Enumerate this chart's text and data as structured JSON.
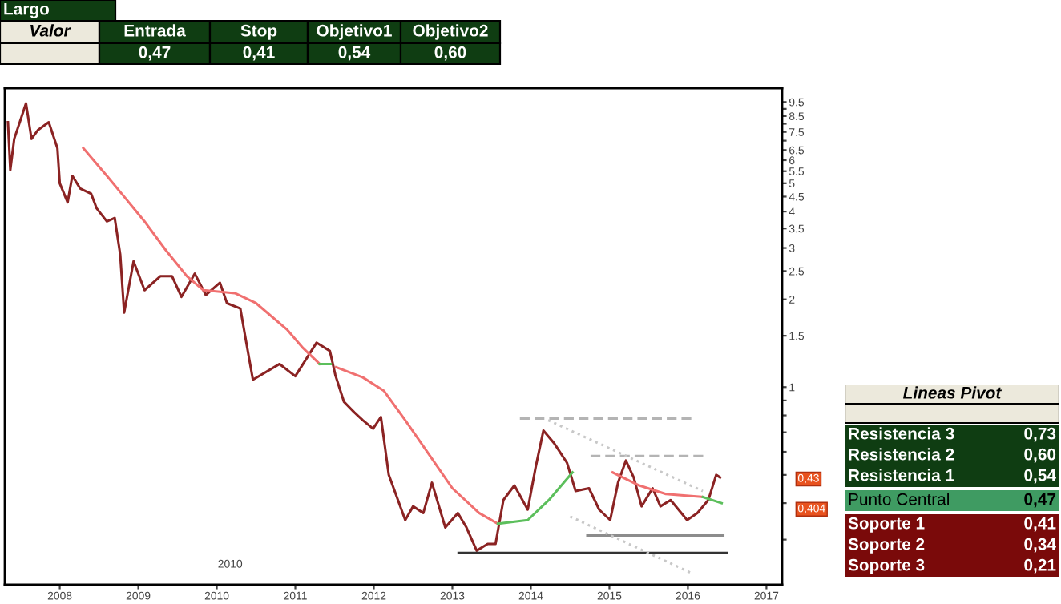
{
  "chart_data": [
    {
      "type": "other",
      "title": "Largo",
      "annotations": [
        "Valor",
        "Entrada",
        "Stop",
        "Objetivo1",
        "Objetivo2",
        "0,47",
        "0,41",
        "0,54",
        "0,60"
      ]
    },
    {
      "type": "line",
      "log": true,
      "grid": false,
      "legend": false,
      "marker": "none",
      "xlim": [
        2007.3,
        2017.2
      ],
      "xticks": [
        2008,
        2009,
        2010,
        2011,
        2012,
        2013,
        2014,
        2015,
        2016,
        2017
      ],
      "ylim": [
        0.21,
        10.6
      ],
      "yticks": [
        {
          "value": 0.3,
          "label": null
        },
        {
          "value": 0.4,
          "label": null
        },
        {
          "value": 0.5,
          "label": null
        },
        {
          "value": 0.6,
          "label": null
        },
        {
          "value": 0.7,
          "label": null
        },
        {
          "value": 0.8,
          "label": null
        },
        {
          "value": 0.9,
          "label": null
        },
        1,
        1.5,
        2,
        2.5,
        3,
        3.5,
        4,
        4.5,
        5,
        5.5,
        6,
        6.5,
        {
          "value": 7,
          "label": null
        },
        7.5,
        {
          "value": 8,
          "label": null
        },
        8.5,
        {
          "value": 9,
          "label": null
        },
        9.5
      ],
      "series": [
        {
          "color": "#8b2323",
          "line_style": "solid",
          "x": [
            2007.34,
            2007.37,
            2007.42,
            2007.57,
            2007.64,
            2007.72,
            2007.86,
            2007.97,
            2008.0,
            2008.1,
            2008.16,
            2008.26,
            2008.4,
            2008.47,
            2008.6,
            2008.7,
            2008.77,
            2008.82,
            2008.94,
            2009.08,
            2009.28,
            2009.43,
            2009.55,
            2009.72,
            2009.86,
            2010.04,
            2010.13,
            2010.3,
            2010.37,
            2010.46,
            2010.8,
            2011.0,
            2011.27,
            2011.44,
            2011.51,
            2011.62,
            2011.75,
            2011.86,
            2011.99,
            2012.09,
            2012.19,
            2012.4,
            2012.5,
            2012.63,
            2012.74,
            2012.91,
            2013.07,
            2013.18,
            2013.31,
            2013.45,
            2013.55,
            2013.65,
            2013.79,
            2013.96,
            2014.06,
            2014.16,
            2014.3,
            2014.46,
            2014.57,
            2014.74,
            2014.87,
            2015.01,
            2015.11,
            2015.21,
            2015.31,
            2015.41,
            2015.55,
            2015.65,
            2015.78,
            2015.99,
            2016.12,
            2016.26,
            2016.36,
            2016.41
          ],
          "values": [
            8.1,
            5.55,
            7.1,
            9.4,
            7.1,
            7.6,
            8.1,
            6.6,
            5.0,
            4.3,
            5.3,
            4.8,
            4.6,
            4.1,
            3.7,
            3.8,
            2.85,
            1.8,
            2.7,
            2.15,
            2.4,
            2.4,
            2.04,
            2.45,
            2.07,
            2.28,
            1.94,
            1.86,
            1.45,
            1.06,
            1.2,
            1.09,
            1.42,
            1.33,
            1.1,
            0.89,
            0.82,
            0.77,
            0.72,
            0.79,
            0.5,
            0.35,
            0.39,
            0.37,
            0.47,
            0.33,
            0.37,
            0.33,
            0.275,
            0.29,
            0.29,
            0.41,
            0.46,
            0.38,
            0.53,
            0.71,
            0.64,
            0.55,
            0.44,
            0.45,
            0.38,
            0.35,
            0.47,
            0.56,
            0.49,
            0.39,
            0.45,
            0.39,
            0.41,
            0.35,
            0.37,
            0.41,
            0.5,
            0.49
          ]
        },
        {
          "color": "#f07070",
          "line_style": "solid",
          "x": [
            2008.3,
            2008.6,
            2008.88,
            2009.08,
            2009.35,
            2009.62,
            2009.83,
            2010.23,
            2010.5,
            2010.9,
            2011.1,
            2011.31,
            2011.45,
            2011.52,
            2011.86,
            2012.13,
            2012.4,
            2012.68,
            2013.0,
            2013.34,
            2013.58,
            2014.53,
            2015.04,
            2015.38,
            2015.72,
            2016.19
          ],
          "values": [
            6.6,
            5.3,
            4.3,
            3.7,
            2.95,
            2.4,
            2.15,
            2.1,
            1.94,
            1.57,
            1.36,
            1.2,
            null,
            1.17,
            1.08,
            0.97,
            0.77,
            0.6,
            0.45,
            0.37,
            0.34,
            null,
            0.51,
            0.46,
            0.43,
            0.42
          ]
        },
        {
          "color": "#5cbf5c",
          "line_style": "solid",
          "x": [
            2011.31,
            2011.45,
            2012.0,
            2013.58,
            2013.96,
            2014.23,
            2014.53,
            2015.0,
            2016.19,
            2016.43
          ],
          "values": [
            1.2,
            1.2,
            null,
            0.34,
            0.35,
            0.41,
            0.51,
            null,
            0.42,
            0.4
          ]
        },
        {
          "color": "#b4b4b4",
          "line_style": "dashed",
          "x": [
            2013.86,
            2016.1
          ],
          "values": [
            0.78,
            0.78
          ]
        },
        {
          "color": "#b4b4b4",
          "line_style": "dashed",
          "x": [
            2014.76,
            2016.22
          ],
          "values": [
            0.58,
            0.58
          ]
        },
        {
          "color": "#8c8c8c",
          "line_style": "solid",
          "x": [
            2014.72,
            2016.45
          ],
          "values": [
            0.31,
            0.31
          ]
        },
        {
          "color": "#333333",
          "line_style": "solid",
          "x": [
            2013.08,
            2016.5
          ],
          "values": [
            0.27,
            0.27
          ]
        },
        {
          "color": "#c8c8c8",
          "line_style": "dotted",
          "x": [
            2014.22,
            2016.19
          ],
          "values": [
            0.77,
            0.44
          ]
        },
        {
          "color": "#c8c8c8",
          "line_style": "dotted",
          "x": [
            2014.5,
            2016.05
          ],
          "values": [
            0.36,
            0.23
          ]
        }
      ],
      "annotations": [
        "0,43",
        "0,404",
        "2010"
      ]
    },
    {
      "type": "other",
      "title": "Lineas Pivot",
      "annotations": [
        "Resistencia 3",
        "0,73",
        "Resistencia 2",
        "0,60",
        "Resistencia 1",
        "0,54",
        "Punto Central",
        "0,47",
        "Soporte 1",
        "0,41",
        "Soporte 2",
        "0,34",
        "Soporte 3",
        "0,21"
      ]
    }
  ]
}
